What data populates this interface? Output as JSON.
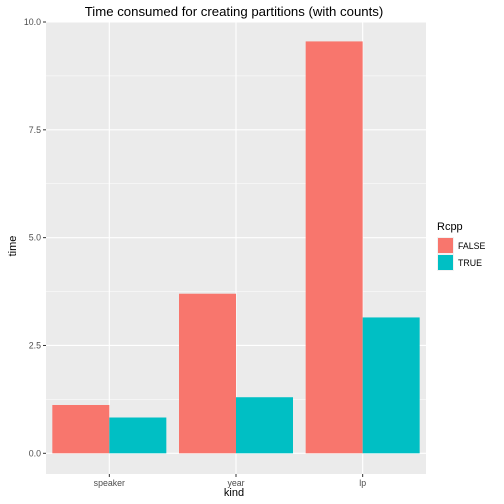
{
  "chart_data": {
    "type": "bar",
    "title": "Time consumed for creating partitions (with counts)",
    "xlabel": "kind",
    "ylabel": "time",
    "categories": [
      "speaker",
      "year",
      "lp"
    ],
    "series": [
      {
        "name": "FALSE",
        "values": [
          1.12,
          3.7,
          9.55
        ],
        "color": "#F8766D"
      },
      {
        "name": "TRUE",
        "values": [
          0.83,
          1.3,
          3.15
        ],
        "color": "#00BFC4"
      }
    ],
    "ylim": [
      -0.48,
      10.0
    ],
    "yticks": [
      0.0,
      2.5,
      5.0,
      7.5,
      10.0
    ],
    "ytick_labels": [
      "0.0",
      "2.5",
      "5.0",
      "7.5",
      "10.0"
    ],
    "legend": {
      "title": "Rcpp",
      "placement": "right"
    },
    "grid": true,
    "panel_background": "#EBEBEB",
    "grid_color": "#FFFFFF"
  }
}
